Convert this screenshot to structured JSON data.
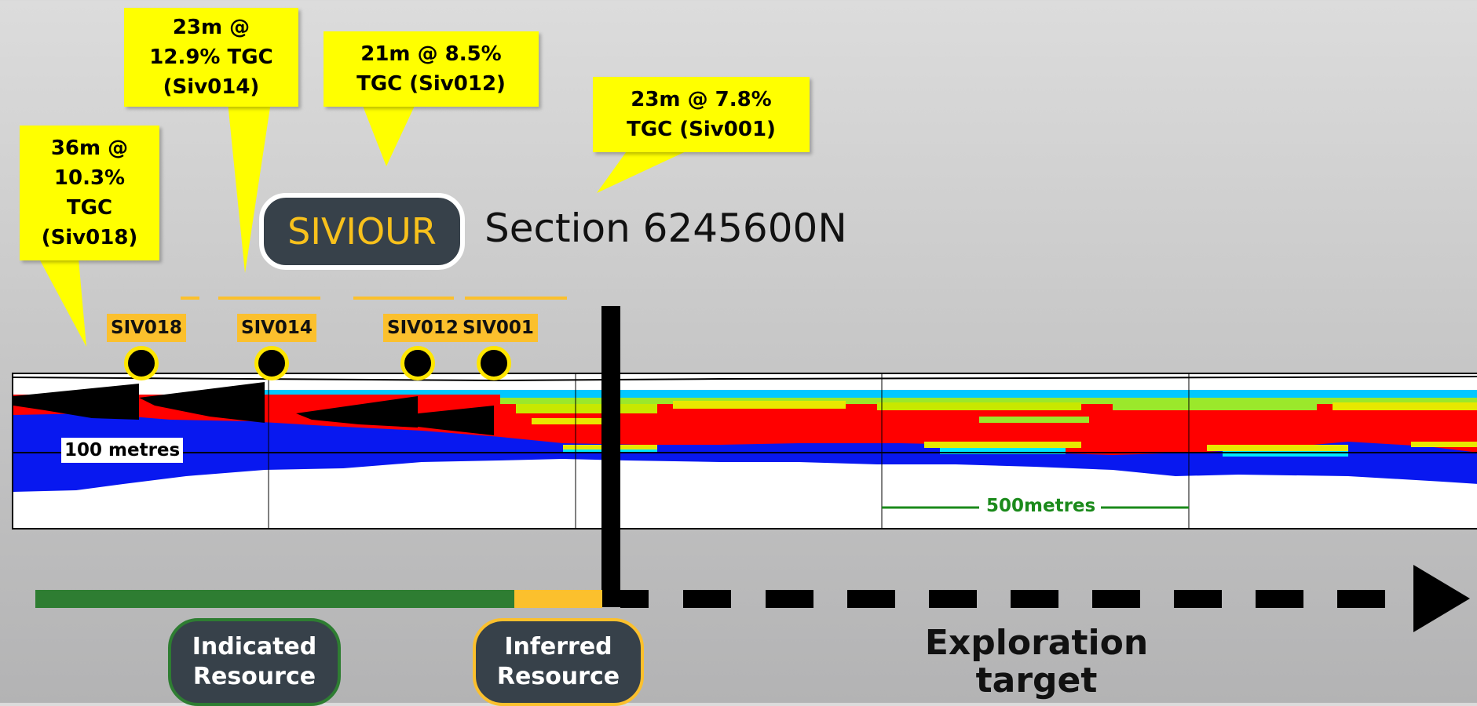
{
  "callouts": [
    {
      "id": "siv018",
      "text": "36m @\n10.3%\nTGC\n(Siv018)"
    },
    {
      "id": "siv014",
      "text": "23m @\n12.9% TGC\n(Siv014)"
    },
    {
      "id": "siv012",
      "text": "21m @ 8.5%\nTGC (Siv012)"
    },
    {
      "id": "siv001",
      "text": "23m @ 7.8%\nTGC (Siv001)"
    }
  ],
  "title": {
    "project": "SIVIOUR",
    "section": "Section 6245600N"
  },
  "drillholes": [
    {
      "label": "SIV018"
    },
    {
      "label": "SIV014"
    },
    {
      "label": "SIV012"
    },
    {
      "label": "SIV001"
    }
  ],
  "section": {
    "vertical_scale_label": "100 metres",
    "horizontal_scale_label": "500metres"
  },
  "legend": {
    "indicated": "Indicated\nResource",
    "inferred": "Inferred\nResource",
    "exploration": "Exploration\ntarget"
  },
  "colors": {
    "callout": "#ffff00",
    "indicated": "#2e7d32",
    "inferred": "#fbc02d",
    "pill": "#37414a",
    "graphite_high": "#ff0000",
    "graphite_low": "#0018ff"
  }
}
